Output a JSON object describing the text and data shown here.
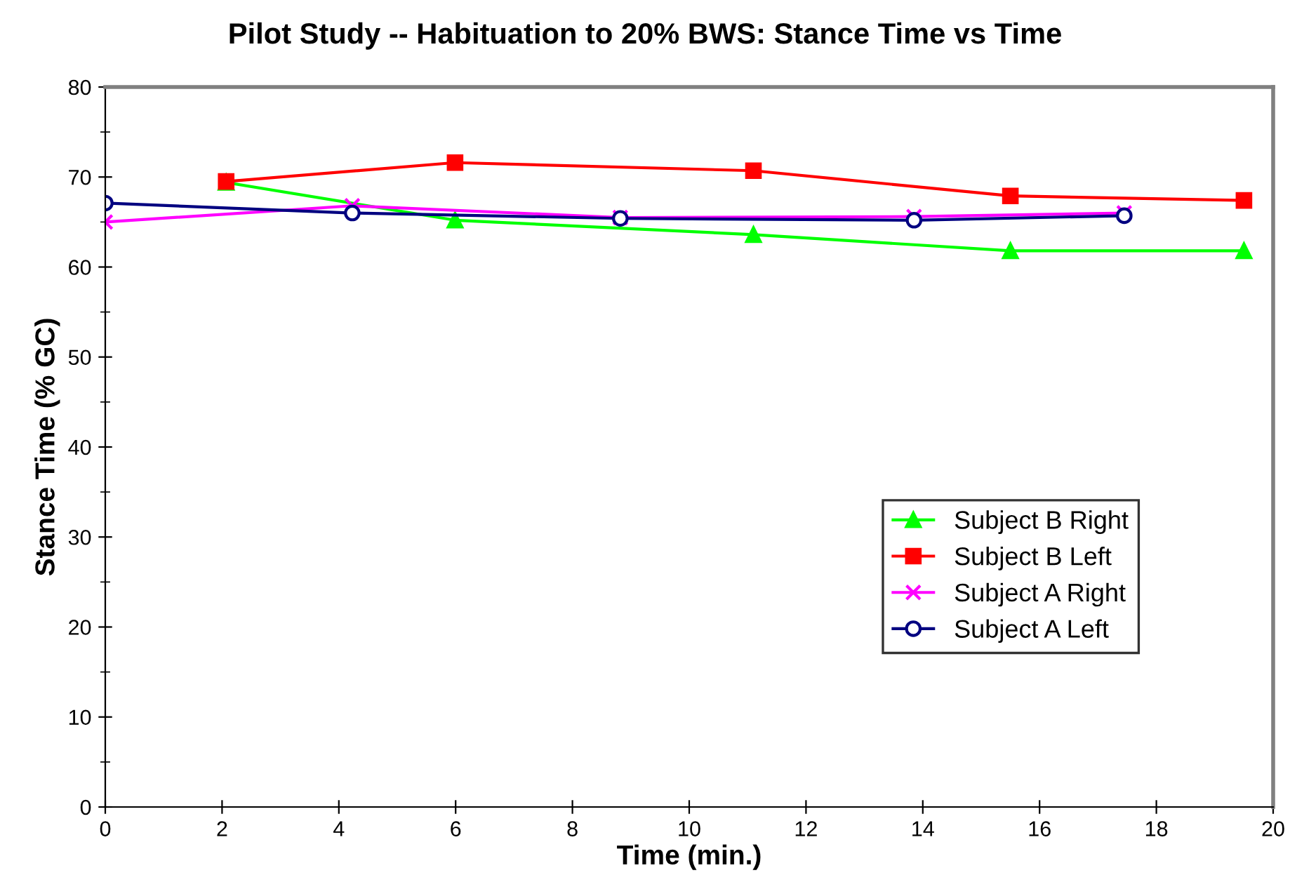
{
  "chart_data": {
    "type": "line",
    "title": "Pilot Study -- Habituation to 20% BWS: Stance Time vs Time",
    "xlabel": "Time (min.)",
    "ylabel": "Stance Time (% GC)",
    "xlim": [
      0,
      20
    ],
    "xticks": [
      0,
      2,
      4,
      6,
      8,
      10,
      12,
      14,
      16,
      18,
      20
    ],
    "ylim": [
      0,
      80
    ],
    "yticks": [
      0,
      10,
      20,
      30,
      40,
      50,
      60,
      70,
      80
    ],
    "grid": false,
    "legend": "right",
    "series": [
      {
        "name": "Subject B Right",
        "color": "#00ff00",
        "marker": "triangle",
        "x": [
          2.07,
          5.99,
          11.1,
          15.5,
          19.5
        ],
        "values": [
          69.4,
          65.2,
          63.6,
          61.8,
          61.8
        ]
      },
      {
        "name": "Subject B Left",
        "color": "#ff0000",
        "marker": "square",
        "x": [
          2.07,
          5.99,
          11.1,
          15.5,
          19.5
        ],
        "values": [
          69.5,
          71.6,
          70.7,
          67.9,
          67.4
        ]
      },
      {
        "name": "Subject A Right",
        "color": "#ff00ff",
        "marker": "cross",
        "x": [
          0,
          4.23,
          8.82,
          13.85,
          17.45
        ],
        "values": [
          65.0,
          66.8,
          65.5,
          65.6,
          66.0
        ]
      },
      {
        "name": "Subject A Left",
        "color": "#000080",
        "marker": "circle",
        "x": [
          0,
          4.23,
          8.82,
          13.85,
          17.45
        ],
        "values": [
          67.1,
          66.0,
          65.4,
          65.2,
          65.7
        ]
      }
    ]
  }
}
